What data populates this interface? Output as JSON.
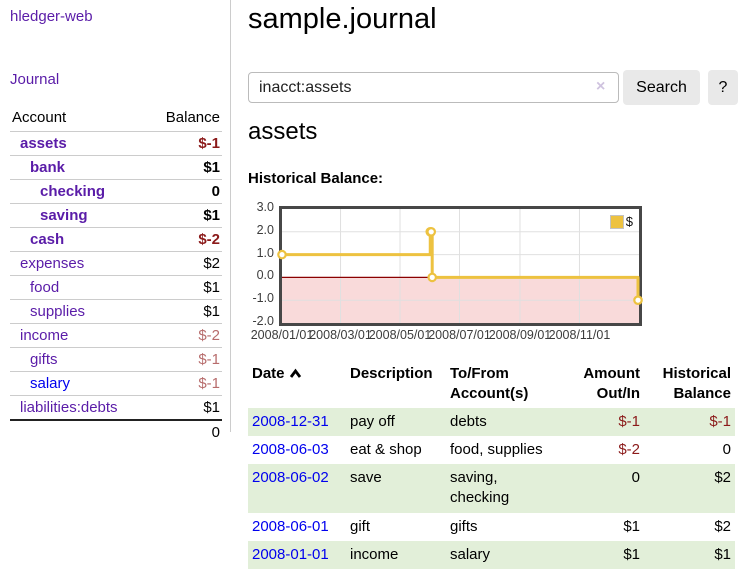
{
  "sidebar": {
    "app_title": "hledger-web",
    "journal_link": "Journal",
    "accounts_table": {
      "account_header": "Account",
      "balance_header": "Balance",
      "rows": [
        {
          "label": "assets",
          "balance": "$-1",
          "indent": 1,
          "bold": true,
          "label_style": "purple",
          "balance_style": "neg"
        },
        {
          "label": "bank",
          "balance": "$1",
          "indent": 2,
          "bold": true,
          "label_style": "purple",
          "balance_style": "pos"
        },
        {
          "label": "checking",
          "balance": "0",
          "indent": 3,
          "bold": true,
          "label_style": "purple",
          "balance_style": "pos"
        },
        {
          "label": "saving",
          "balance": "$1",
          "indent": 3,
          "bold": true,
          "label_style": "purple",
          "balance_style": "pos"
        },
        {
          "label": "cash",
          "balance": "$-2",
          "indent": 2,
          "bold": true,
          "label_style": "purple",
          "balance_style": "neg"
        },
        {
          "label": "expenses",
          "balance": "$2",
          "indent": 1,
          "bold": false,
          "label_style": "purple",
          "balance_style": "pos"
        },
        {
          "label": "food",
          "balance": "$1",
          "indent": 2,
          "bold": false,
          "label_style": "purple",
          "balance_style": "pos"
        },
        {
          "label": "supplies",
          "balance": "$1",
          "indent": 2,
          "bold": false,
          "label_style": "purple",
          "balance_style": "pos"
        },
        {
          "label": "income",
          "balance": "$-2",
          "indent": 1,
          "bold": false,
          "label_style": "purple",
          "balance_style": "negsoft"
        },
        {
          "label": "gifts",
          "balance": "$-1",
          "indent": 2,
          "bold": false,
          "label_style": "purple",
          "balance_style": "negsoft"
        },
        {
          "label": "salary",
          "balance": "$-1",
          "indent": 2,
          "bold": false,
          "label_style": "blue",
          "balance_style": "negsoft"
        },
        {
          "label": "liabilities:debts",
          "balance": "$1",
          "indent": 1,
          "bold": false,
          "label_style": "purple",
          "balance_style": "pos"
        }
      ],
      "total": "0"
    }
  },
  "main": {
    "title": "sample.journal",
    "search": {
      "value": "inacct:assets",
      "clear_icon": "×",
      "search_button": "Search",
      "help_button": "?"
    },
    "account_heading": "assets",
    "chart_caption": "Historical Balance:",
    "register": {
      "headers": {
        "date": "Date",
        "description": "Description",
        "tofrom": "To/From Account(s)",
        "amount": "Amount Out/In",
        "balance": "Historical Balance"
      },
      "rows": [
        {
          "date": "2008-12-31",
          "description": "pay off",
          "tofrom": "debts",
          "amount": "$-1",
          "amount_neg": true,
          "balance": "$-1",
          "balance_neg": true
        },
        {
          "date": "2008-06-03",
          "description": "eat & shop",
          "tofrom": "food, supplies",
          "amount": "$-2",
          "amount_neg": true,
          "balance": "0",
          "balance_neg": false
        },
        {
          "date": "2008-06-02",
          "description": "save",
          "tofrom": "saving, checking",
          "amount": "0",
          "amount_neg": false,
          "balance": "$2",
          "balance_neg": false
        },
        {
          "date": "2008-06-01",
          "description": "gift",
          "tofrom": "gifts",
          "amount": "$1",
          "amount_neg": false,
          "balance": "$2",
          "balance_neg": false
        },
        {
          "date": "2008-01-01",
          "description": "income",
          "tofrom": "salary",
          "amount": "$1",
          "amount_neg": false,
          "balance": "$1",
          "balance_neg": false
        }
      ]
    }
  },
  "chart_data": {
    "type": "line",
    "title": "Historical Balance",
    "legend": "$",
    "legend_position": "top-right",
    "series": [
      {
        "name": "$",
        "color": "#edc240",
        "points": [
          {
            "date": "2008-01-01",
            "value": 1
          },
          {
            "date": "2008-06-01",
            "value": 2
          },
          {
            "date": "2008-06-02",
            "value": 2
          },
          {
            "date": "2008-06-03",
            "value": 0
          },
          {
            "date": "2008-12-31",
            "value": -1
          }
        ]
      }
    ],
    "x_range": [
      "2008-01-01",
      "2008-12-31"
    ],
    "x_ticks": [
      "2008/01/01",
      "2008/03/01",
      "2008/05/01",
      "2008/07/01",
      "2008/09/01",
      "2008/11/01"
    ],
    "y_ticks": [
      3.0,
      2.0,
      1.0,
      0.0,
      -1.0,
      -2.0
    ],
    "ylim": [
      -2,
      3
    ],
    "grid": true,
    "gridline_color": "#e0e0e0",
    "negative_region_color": "#f9dada",
    "zero_line_color": "#8b0000"
  }
}
